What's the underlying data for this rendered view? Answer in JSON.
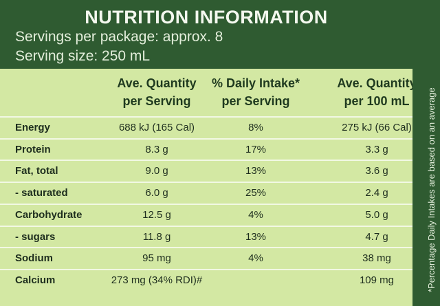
{
  "header": {
    "title": "NUTRITION INFORMATION",
    "servings": "Servings per package: approx. 8",
    "serving_size": "Serving size: 250 mL"
  },
  "table": {
    "columns": [
      [
        "Ave. Quantity",
        "per Serving"
      ],
      [
        "% Daily Intake*",
        "per Serving"
      ],
      [
        "Ave. Quantity",
        "per 100 mL"
      ]
    ],
    "rows": [
      {
        "nutrient": "Energy",
        "per_serving": "688 kJ (165 Cal)",
        "daily_intake": "8%",
        "per_100ml": "275 kJ (66 Cal)"
      },
      {
        "nutrient": "Protein",
        "per_serving": "8.3 g",
        "daily_intake": "17%",
        "per_100ml": "3.3 g"
      },
      {
        "nutrient": "Fat, total",
        "per_serving": "9.0 g",
        "daily_intake": "13%",
        "per_100ml": "3.6 g"
      },
      {
        "nutrient": "- saturated",
        "per_serving": "6.0 g",
        "daily_intake": "25%",
        "per_100ml": "2.4 g"
      },
      {
        "nutrient": "Carbohydrate",
        "per_serving": "12.5 g",
        "daily_intake": "4%",
        "per_100ml": "5.0 g"
      },
      {
        "nutrient": "- sugars",
        "per_serving": "11.8 g",
        "daily_intake": "13%",
        "per_100ml": "4.7 g"
      },
      {
        "nutrient": "Sodium",
        "per_serving": "95 mg",
        "daily_intake": "4%",
        "per_100ml": "38 mg"
      },
      {
        "nutrient": "Calcium",
        "per_serving": "273 mg (34% RDI)#",
        "per_100ml": "109 mg"
      }
    ]
  },
  "footnote": "*Percentage Daily Intakes are based on an average"
}
